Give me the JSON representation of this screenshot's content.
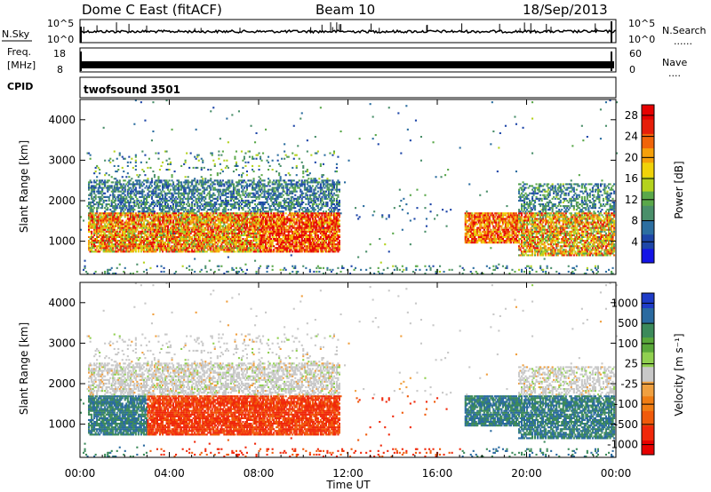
{
  "header": {
    "station": "Dome C East (fitACF)",
    "beam": "Beam 10",
    "date": "18/Sep/2013"
  },
  "top_panels": {
    "nsky_label": "N.Sky",
    "nsky_ticks": [
      "10^5",
      "10^0"
    ],
    "nsearch_label": "N.Search",
    "nsearch_ticks": [
      "10^5",
      "10^0"
    ],
    "freq_label_1": "Freq.",
    "freq_label_2": "[MHz]",
    "freq_left_ticks": [
      "18",
      "8"
    ],
    "nave_label": "Nave",
    "nave_ticks": [
      "60",
      "0"
    ],
    "cpid_label": "CPID",
    "cpid_value": "twofsound 3501",
    "dotted_line": "......",
    "dotted_line_2": "...."
  },
  "colors": {
    "power": [
      "#1414e6",
      "#1e46a8",
      "#2c6ea0",
      "#4a8f6a",
      "#5aa84a",
      "#b4d21e",
      "#f0d20a",
      "#f5a00a",
      "#f0640a",
      "#e61e0a",
      "#e60000"
    ],
    "velocity": [
      "#1e3cc8",
      "#2a6aa0",
      "#3c8a5a",
      "#5aa83a",
      "#90d050",
      "#c8c8c8",
      "#f0a040",
      "#f07d14",
      "#f05a0a",
      "#f0280a",
      "#e60000"
    ]
  },
  "chart_data": [
    {
      "type": "heatmap",
      "name": "power-panel",
      "xlabel": "",
      "ylabel": "Slant Range [km]",
      "x_ticks": [
        "00:00",
        "04:00",
        "08:00",
        "12:00",
        "16:00",
        "20:00",
        "00:00"
      ],
      "xlim_hours": [
        0,
        24
      ],
      "y_ticks": [
        1000,
        2000,
        3000,
        4000
      ],
      "ylim": [
        180,
        4500
      ],
      "colorbar_label": "Power [dB]",
      "colorbar_ticks": [
        "4",
        "8",
        "12",
        "16",
        "20",
        "24",
        "28"
      ],
      "colorbar_range": [
        0,
        30
      ]
    },
    {
      "type": "heatmap",
      "name": "velocity-panel",
      "xlabel": "Time UT",
      "ylabel": "Slant Range [km]",
      "x_ticks": [
        "00:00",
        "04:00",
        "08:00",
        "12:00",
        "16:00",
        "20:00",
        "00:00"
      ],
      "xlim_hours": [
        0,
        24
      ],
      "y_ticks": [
        1000,
        2000,
        3000,
        4000
      ],
      "ylim": [
        180,
        4500
      ],
      "colorbar_label": "Velocity [m s⁻¹]",
      "colorbar_ticks": [
        "1000",
        "500",
        "100",
        "25",
        "-25",
        "-100",
        "-500",
        "-1000"
      ],
      "colorbar_range": [
        -1000,
        1000
      ]
    }
  ]
}
